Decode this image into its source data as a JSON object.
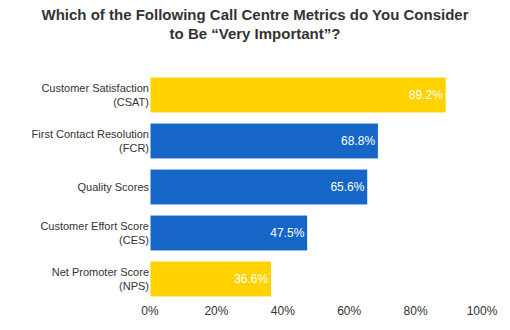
{
  "chart_data": {
    "type": "bar",
    "orientation": "horizontal",
    "title": "Which of the Following Call Centre Metrics do You Consider\nto Be “Very Important”?",
    "categories": [
      "Customer Satisfaction\n(CSAT)",
      "First Contact Resolution\n(FCR)",
      "Quality Scores",
      "Customer Effort Score\n(CES)",
      "Net Promoter Score\n(NPS)"
    ],
    "values": [
      89.2,
      68.8,
      65.6,
      47.5,
      36.6
    ],
    "value_labels": [
      "89.2%",
      "68.8%",
      "65.6%",
      "47.5%",
      "36.6%"
    ],
    "colors": [
      "#ffd200",
      "#1666c8",
      "#1666c8",
      "#1666c8",
      "#ffd200"
    ],
    "data_labels": true,
    "xlim": [
      0,
      100
    ],
    "xticks": [
      {
        "value": 0,
        "label": "0%"
      },
      {
        "value": 20,
        "label": "20%"
      },
      {
        "value": 40,
        "label": "40%"
      },
      {
        "value": 60,
        "label": "60%"
      },
      {
        "value": 80,
        "label": "80%"
      },
      {
        "value": 100,
        "label": "100%"
      }
    ],
    "grid": false
  }
}
